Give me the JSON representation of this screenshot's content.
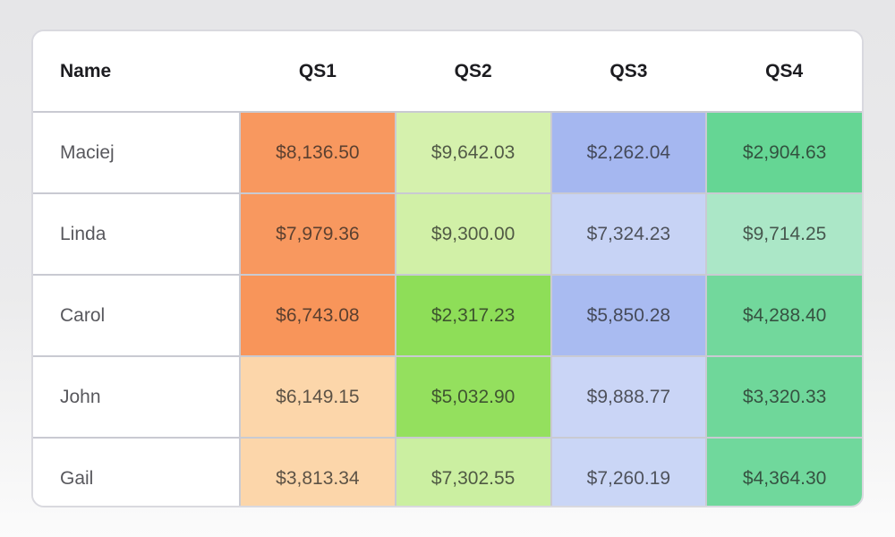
{
  "page": {
    "background_top": "#e6e6e8",
    "background_bottom": "#fbfbfb",
    "card_background": "#ffffff",
    "card_border": "#d9d9df",
    "grid_border": "#c9cad2"
  },
  "table": {
    "columns": [
      "Name",
      "QS1",
      "QS2",
      "QS3",
      "QS4"
    ],
    "rows": [
      {
        "name": "Maciej",
        "cells": [
          {
            "text": "$8,136.50",
            "bg": "#f8985f"
          },
          {
            "text": "$9,642.03",
            "bg": "#d5f1ad"
          },
          {
            "text": "$2,262.04",
            "bg": "#a5b7f0"
          },
          {
            "text": "$2,904.63",
            "bg": "#65d694"
          }
        ]
      },
      {
        "name": "Linda",
        "cells": [
          {
            "text": "$7,979.36",
            "bg": "#f8985f"
          },
          {
            "text": "$9,300.00",
            "bg": "#d1f0a7"
          },
          {
            "text": "$7,324.23",
            "bg": "#c7d3f5"
          },
          {
            "text": "$9,714.25",
            "bg": "#abe7c7"
          }
        ]
      },
      {
        "name": "Carol",
        "cells": [
          {
            "text": "$6,743.08",
            "bg": "#f8955a"
          },
          {
            "text": "$2,317.23",
            "bg": "#8ede58"
          },
          {
            "text": "$5,850.28",
            "bg": "#a9bbf1"
          },
          {
            "text": "$4,288.40",
            "bg": "#72d89c"
          }
        ]
      },
      {
        "name": "John",
        "cells": [
          {
            "text": "$6,149.15",
            "bg": "#fcd6aa"
          },
          {
            "text": "$5,032.90",
            "bg": "#94e05e"
          },
          {
            "text": "$9,888.77",
            "bg": "#cad5f6"
          },
          {
            "text": "$3,320.33",
            "bg": "#6fd79a"
          }
        ]
      },
      {
        "name": "Gail",
        "cells": [
          {
            "text": "$3,813.34",
            "bg": "#fcd6aa"
          },
          {
            "text": "$7,302.55",
            "bg": "#cbefa1"
          },
          {
            "text": "$7,260.19",
            "bg": "#cad6f6"
          },
          {
            "text": "$4,364.30",
            "bg": "#70d89c"
          }
        ]
      }
    ]
  },
  "chart_data": {
    "type": "table",
    "title": "",
    "categories": [
      "QS1",
      "QS2",
      "QS3",
      "QS4"
    ],
    "series": [
      {
        "name": "Maciej",
        "values": [
          8136.5,
          9642.03,
          2262.04,
          2904.63
        ]
      },
      {
        "name": "Linda",
        "values": [
          7979.36,
          9300.0,
          7324.23,
          9714.25
        ]
      },
      {
        "name": "Carol",
        "values": [
          6743.08,
          2317.23,
          5850.28,
          4288.4
        ]
      },
      {
        "name": "John",
        "values": [
          6149.15,
          5032.9,
          9888.77,
          3320.33
        ]
      },
      {
        "name": "Gail",
        "values": [
          3813.34,
          7302.55,
          7260.19,
          4364.3
        ]
      }
    ]
  }
}
